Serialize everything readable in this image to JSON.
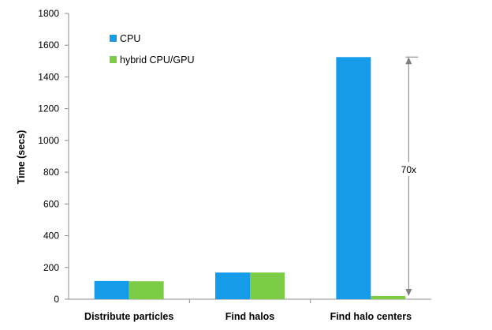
{
  "chart_data": {
    "type": "bar",
    "title": "",
    "xlabel": "",
    "ylabel": "Time (secs)",
    "ylim": [
      0,
      1800
    ],
    "yticks": [
      0,
      200,
      400,
      600,
      800,
      1000,
      1200,
      1400,
      1600,
      1800
    ],
    "categories": [
      "Distribute particles",
      "Find halos",
      "Find halo centers"
    ],
    "series": [
      {
        "name": "CPU",
        "values": [
          115,
          168,
          1525
        ],
        "color": "#169be8"
      },
      {
        "name": "hybrid CPU/GPU",
        "values": [
          113,
          168,
          20
        ],
        "color": "#7ccc46"
      }
    ],
    "grid": false,
    "legend": "top-left",
    "annotation": {
      "text": "70x",
      "category": "Find halo centers",
      "from": 20,
      "to": 1525
    }
  }
}
